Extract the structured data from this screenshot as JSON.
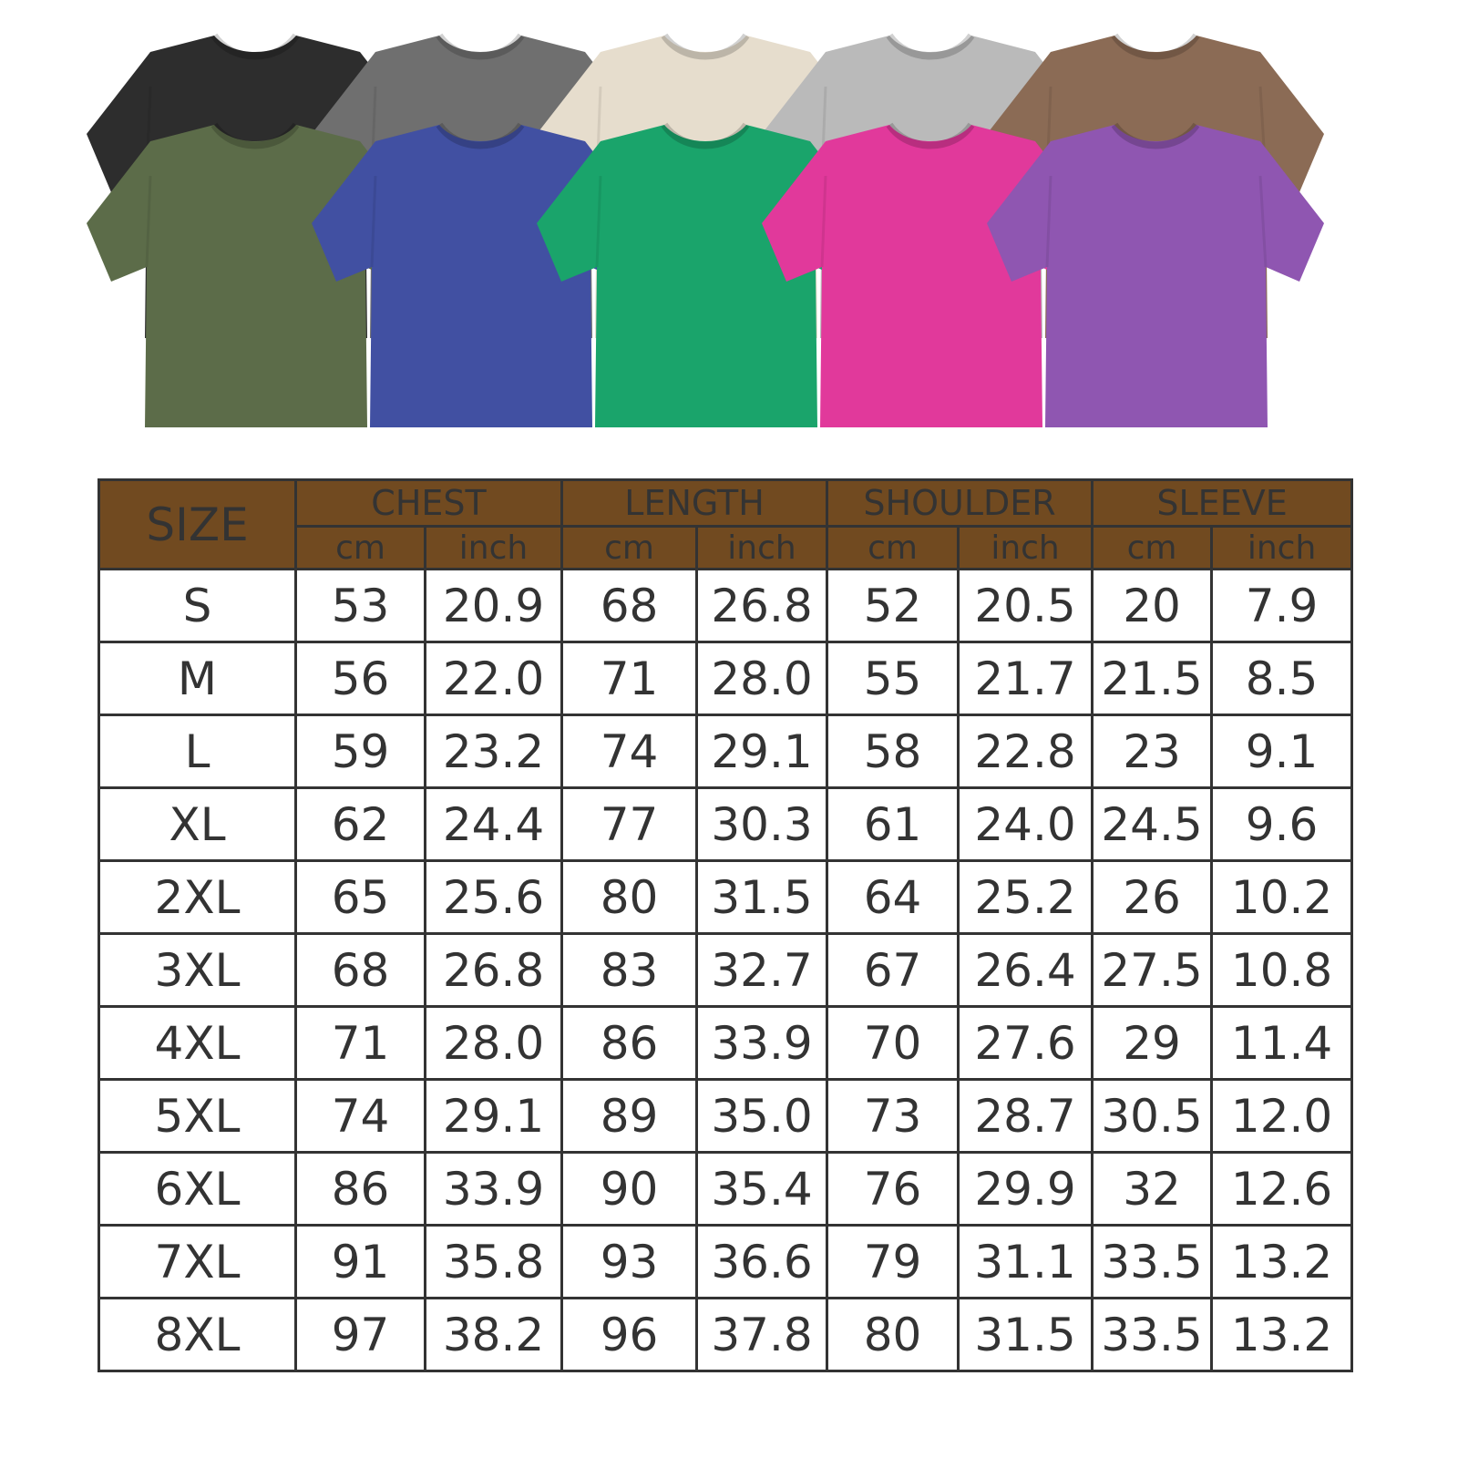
{
  "shirts": {
    "back_row": [
      {
        "color_name": "black",
        "hex": "#2d2d2d"
      },
      {
        "color_name": "dark-gray",
        "hex": "#6f6f6f"
      },
      {
        "color_name": "cream",
        "hex": "#e6ddcd"
      },
      {
        "color_name": "light-gray",
        "hex": "#bababa"
      },
      {
        "color_name": "brown",
        "hex": "#8b6b55"
      }
    ],
    "front_row": [
      {
        "color_name": "olive",
        "hex": "#5c6c49"
      },
      {
        "color_name": "blue",
        "hex": "#4150a2"
      },
      {
        "color_name": "green",
        "hex": "#1aa46b"
      },
      {
        "color_name": "pink",
        "hex": "#e1399b"
      },
      {
        "color_name": "purple",
        "hex": "#8f56b1"
      }
    ]
  },
  "table": {
    "header_color": "#714a20",
    "size_label": "SIZE",
    "groups": [
      "CHEST",
      "LENGTH",
      "SHOULDER",
      "SLEEVE"
    ],
    "units": [
      "cm",
      "inch"
    ],
    "rows": [
      [
        "S",
        "53",
        "20.9",
        "68",
        "26.8",
        "52",
        "20.5",
        "20",
        "7.9"
      ],
      [
        "M",
        "56",
        "22.0",
        "71",
        "28.0",
        "55",
        "21.7",
        "21.5",
        "8.5"
      ],
      [
        "L",
        "59",
        "23.2",
        "74",
        "29.1",
        "58",
        "22.8",
        "23",
        "9.1"
      ],
      [
        "XL",
        "62",
        "24.4",
        "77",
        "30.3",
        "61",
        "24.0",
        "24.5",
        "9.6"
      ],
      [
        "2XL",
        "65",
        "25.6",
        "80",
        "31.5",
        "64",
        "25.2",
        "26",
        "10.2"
      ],
      [
        "3XL",
        "68",
        "26.8",
        "83",
        "32.7",
        "67",
        "26.4",
        "27.5",
        "10.8"
      ],
      [
        "4XL",
        "71",
        "28.0",
        "86",
        "33.9",
        "70",
        "27.6",
        "29",
        "11.4"
      ],
      [
        "5XL",
        "74",
        "29.1",
        "89",
        "35.0",
        "73",
        "28.7",
        "30.5",
        "12.0"
      ],
      [
        "6XL",
        "86",
        "33.9",
        "90",
        "35.4",
        "76",
        "29.9",
        "32",
        "12.6"
      ],
      [
        "7XL",
        "91",
        "35.8",
        "93",
        "36.6",
        "79",
        "31.1",
        "33.5",
        "13.2"
      ],
      [
        "8XL",
        "97",
        "38.2",
        "96",
        "37.8",
        "80",
        "31.5",
        "33.5",
        "13.2"
      ]
    ]
  }
}
